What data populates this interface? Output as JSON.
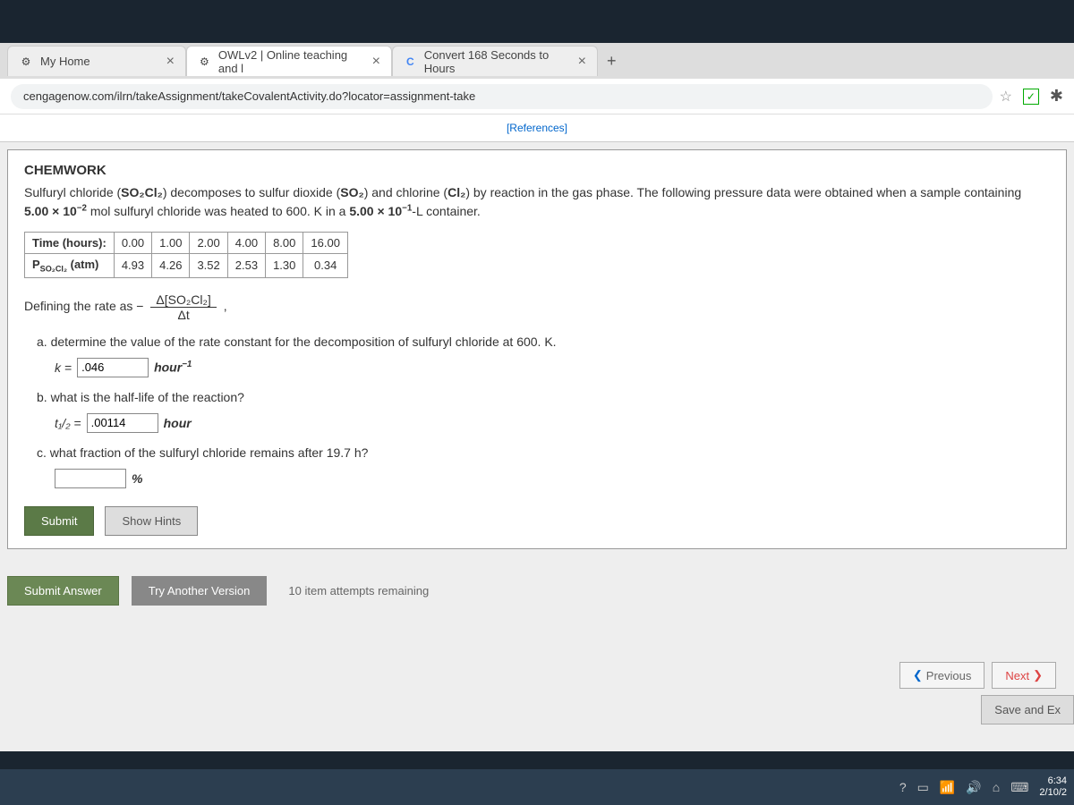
{
  "tabs": [
    {
      "label": "My Home",
      "icon": "⚙",
      "active": false
    },
    {
      "label": "OWLv2 | Online teaching and l",
      "icon": "⚙",
      "active": true
    },
    {
      "label": "Convert 168 Seconds to Hours",
      "icon": "C",
      "active": false
    }
  ],
  "new_tab": "+",
  "url": "cengagenow.com/ilrn/takeAssignment/takeCovalentActivity.do?locator=assignment-take",
  "references": "[References]",
  "chem": {
    "title": "CHEMWORK",
    "desc_line1_a": "Sulfuryl chloride (",
    "so2cl2": "SO₂Cl₂",
    "desc_line1_b": ") decomposes to sulfur dioxide (",
    "so2": "SO₂",
    "desc_line1_c": ") and chlorine (",
    "cl2": "Cl₂",
    "desc_line1_d": ") by reaction in the gas phase. The following pressure data were obtained when a sample containing",
    "desc_line2_a": "5.00 × 10",
    "desc_line2_exp": "−2",
    "desc_line2_b": " mol sulfuryl chloride was heated to 600. K in a ",
    "desc_line2_c": "5.00 × 10",
    "desc_line2_exp2": "−1",
    "desc_line2_d": "-L container."
  },
  "table": {
    "row1_header": "Time (hours):",
    "row2_header": "P_SO₂Cl₂ (atm)",
    "cols": [
      "0.00",
      "1.00",
      "2.00",
      "4.00",
      "8.00",
      "16.00"
    ],
    "vals": [
      "4.93",
      "4.26",
      "3.52",
      "2.53",
      "1.30",
      "0.34"
    ]
  },
  "rate_def_prefix": "Defining the rate as − ",
  "rate_num": "Δ[SO₂Cl₂]",
  "rate_den": "Δt",
  "qa": {
    "text": "a. determine the value of the rate constant for the decomposition of sulfuryl chloride at 600. K.",
    "k_eq": "k =",
    "k_val": ".046",
    "unit": "hour",
    "unit_exp": "−1"
  },
  "qb": {
    "text": "b. what is the half-life of the reaction?",
    "t_eq": "t₁/₂ =",
    "t_val": ".00114",
    "unit": "hour"
  },
  "qc": {
    "text": "c. what fraction of the sulfuryl chloride remains after 19.7 h?",
    "val": "",
    "unit": "%"
  },
  "buttons": {
    "submit": "Submit",
    "hints": "Show Hints",
    "answer": "Submit Answer",
    "try": "Try Another Version",
    "attempts": "10 item attempts remaining",
    "prev": "Previous",
    "next": "Next",
    "save": "Save and Ex"
  },
  "taskbar": {
    "time": "6:34",
    "date": "2/10/2"
  }
}
